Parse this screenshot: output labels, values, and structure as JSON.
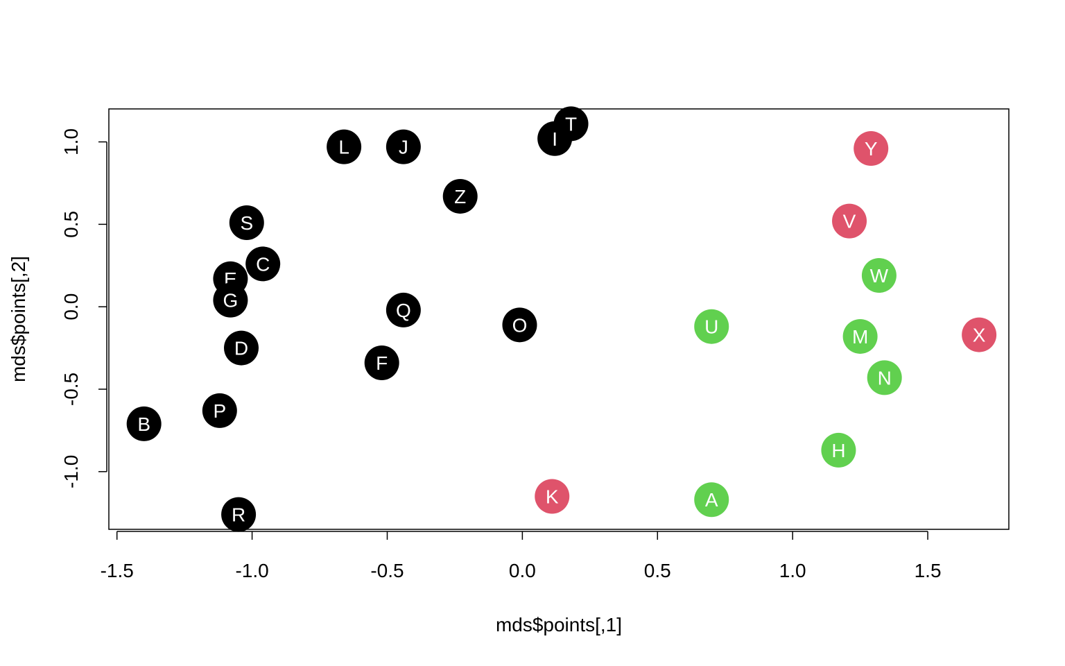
{
  "chart_data": {
    "type": "scatter",
    "title": "",
    "xlabel": "mds$points[,1]",
    "ylabel": "mds$points[,2]",
    "xlim": [
      -1.53,
      1.8
    ],
    "ylim": [
      -1.35,
      1.2
    ],
    "x_ticks": [
      -1.5,
      -1.0,
      -0.5,
      0.0,
      0.5,
      1.0,
      1.5
    ],
    "x_tick_labels": [
      "-1.5",
      "-1.0",
      "-0.5",
      "0.0",
      "0.5",
      "1.0",
      "1.5"
    ],
    "y_ticks": [
      -1.0,
      -0.5,
      0.0,
      0.5,
      1.0
    ],
    "y_tick_labels": [
      "-1.0",
      "-0.5",
      "0.0",
      "0.5",
      "1.0"
    ],
    "grid": false,
    "colors": {
      "black": "#000000",
      "red": "#DF536B",
      "green": "#61D04F"
    },
    "points": [
      {
        "label": "A",
        "x": 0.7,
        "y": -1.17,
        "color": "green"
      },
      {
        "label": "B",
        "x": -1.4,
        "y": -0.71,
        "color": "black"
      },
      {
        "label": "C",
        "x": -0.96,
        "y": 0.26,
        "color": "black"
      },
      {
        "label": "D",
        "x": -1.04,
        "y": -0.25,
        "color": "black"
      },
      {
        "label": "E",
        "x": -1.08,
        "y": 0.17,
        "color": "black"
      },
      {
        "label": "F",
        "x": -0.52,
        "y": -0.34,
        "color": "black"
      },
      {
        "label": "G",
        "x": -1.08,
        "y": 0.04,
        "color": "black"
      },
      {
        "label": "H",
        "x": 1.17,
        "y": -0.87,
        "color": "green"
      },
      {
        "label": "I",
        "x": 0.12,
        "y": 1.02,
        "color": "black"
      },
      {
        "label": "J",
        "x": -0.44,
        "y": 0.97,
        "color": "black"
      },
      {
        "label": "K",
        "x": 0.11,
        "y": -1.15,
        "color": "red"
      },
      {
        "label": "L",
        "x": -0.66,
        "y": 0.97,
        "color": "black"
      },
      {
        "label": "M",
        "x": 1.25,
        "y": -0.18,
        "color": "green"
      },
      {
        "label": "N",
        "x": 1.34,
        "y": -0.43,
        "color": "green"
      },
      {
        "label": "O",
        "x": -0.01,
        "y": -0.11,
        "color": "black"
      },
      {
        "label": "P",
        "x": -1.12,
        "y": -0.63,
        "color": "black"
      },
      {
        "label": "Q",
        "x": -0.44,
        "y": -0.02,
        "color": "black"
      },
      {
        "label": "R",
        "x": -1.05,
        "y": -1.26,
        "color": "black"
      },
      {
        "label": "S",
        "x": -1.02,
        "y": 0.51,
        "color": "black"
      },
      {
        "label": "T",
        "x": 0.18,
        "y": 1.11,
        "color": "black"
      },
      {
        "label": "U",
        "x": 0.7,
        "y": -0.12,
        "color": "green"
      },
      {
        "label": "V",
        "x": 1.21,
        "y": 0.52,
        "color": "red"
      },
      {
        "label": "W",
        "x": 1.32,
        "y": 0.19,
        "color": "green"
      },
      {
        "label": "X",
        "x": 1.69,
        "y": -0.17,
        "color": "red"
      },
      {
        "label": "Y",
        "x": 1.29,
        "y": 0.96,
        "color": "red"
      },
      {
        "label": "Z",
        "x": -0.23,
        "y": 0.67,
        "color": "black"
      }
    ]
  }
}
